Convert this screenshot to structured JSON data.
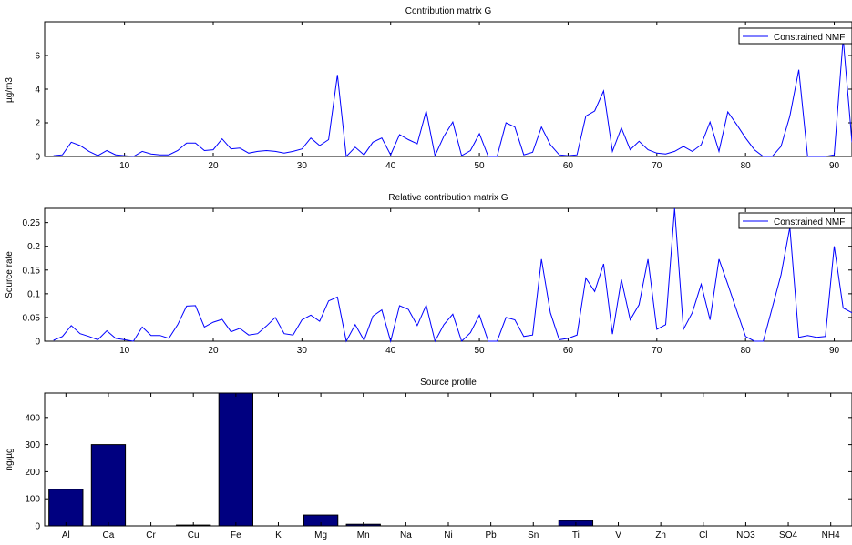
{
  "chart_data": [
    {
      "type": "line",
      "title": "Contribution matrix G",
      "xlabel": "",
      "ylabel": "µg/m3",
      "xlim": [
        1,
        92
      ],
      "ylim": [
        0,
        8
      ],
      "xticks": [
        10,
        20,
        30,
        40,
        50,
        60,
        70,
        80,
        90
      ],
      "yticks": [
        0,
        2,
        4,
        6
      ],
      "legend_position": "top-right",
      "grid": false,
      "color": "#0000ff",
      "series": [
        {
          "name": "Constrained NMF",
          "x": [
            2,
            3,
            4,
            5,
            6,
            7,
            8,
            9,
            10,
            11,
            12,
            13,
            14,
            15,
            16,
            17,
            18,
            19,
            20,
            21,
            22,
            23,
            24,
            25,
            26,
            27,
            28,
            29,
            30,
            31,
            32,
            33,
            34,
            35,
            36,
            37,
            38,
            39,
            40,
            41,
            42,
            43,
            44,
            45,
            46,
            47,
            48,
            49,
            50,
            51,
            52,
            53,
            54,
            55,
            56,
            57,
            58,
            59,
            60,
            61,
            62,
            63,
            64,
            65,
            66,
            67,
            68,
            69,
            70,
            71,
            72,
            73,
            74,
            75,
            76,
            77,
            78,
            79,
            80,
            81,
            82,
            83,
            84,
            85,
            86,
            87,
            88,
            89,
            90,
            91,
            92
          ],
          "values": [
            0.05,
            0.1,
            0.85,
            0.65,
            0.3,
            0.05,
            0.35,
            0.1,
            0.05,
            0.0,
            0.3,
            0.15,
            0.1,
            0.1,
            0.35,
            0.8,
            0.8,
            0.35,
            0.4,
            1.05,
            0.45,
            0.5,
            0.2,
            0.3,
            0.35,
            0.3,
            0.2,
            0.3,
            0.45,
            1.1,
            0.65,
            1.0,
            4.85,
            0.0,
            0.55,
            0.1,
            0.85,
            1.1,
            0.1,
            1.3,
            1.0,
            0.75,
            2.7,
            0.05,
            1.2,
            2.05,
            0.05,
            0.35,
            1.35,
            0.0,
            0.0,
            2.0,
            1.75,
            0.1,
            0.25,
            1.75,
            0.7,
            0.1,
            0.05,
            0.1,
            2.4,
            2.7,
            3.9,
            0.3,
            1.7,
            0.4,
            0.9,
            0.4,
            0.2,
            0.15,
            0.3,
            0.6,
            0.3,
            0.7,
            2.05,
            0.3,
            2.65,
            1.9,
            1.1,
            0.4,
            0.0,
            0.0,
            0.6,
            2.4,
            5.15,
            0.0,
            0.0,
            0.0,
            0.1,
            7.0,
            0.85
          ]
        }
      ]
    },
    {
      "type": "line",
      "title": "Relative contribution matrix G",
      "xlabel": "",
      "ylabel": "Source rate",
      "xlim": [
        1,
        92
      ],
      "ylim": [
        0,
        0.28
      ],
      "xticks": [
        10,
        20,
        30,
        40,
        50,
        60,
        70,
        80,
        90
      ],
      "yticks": [
        0,
        0.05,
        0.1,
        0.15,
        0.2,
        0.25
      ],
      "legend_position": "top-right",
      "grid": false,
      "color": "#0000ff",
      "series": [
        {
          "name": "Constrained NMF",
          "x": [
            2,
            3,
            4,
            5,
            6,
            7,
            8,
            9,
            10,
            11,
            12,
            13,
            14,
            15,
            16,
            17,
            18,
            19,
            20,
            21,
            22,
            23,
            24,
            25,
            26,
            27,
            28,
            29,
            30,
            31,
            32,
            33,
            34,
            35,
            36,
            37,
            38,
            39,
            40,
            41,
            42,
            43,
            44,
            45,
            46,
            47,
            48,
            49,
            50,
            51,
            52,
            53,
            54,
            55,
            56,
            57,
            58,
            59,
            60,
            61,
            62,
            63,
            64,
            65,
            66,
            67,
            68,
            69,
            70,
            71,
            72,
            73,
            74,
            75,
            76,
            77,
            78,
            79,
            80,
            81,
            82,
            83,
            84,
            85,
            86,
            87,
            88,
            89,
            90,
            91,
            92
          ],
          "values": [
            0.002,
            0.01,
            0.033,
            0.016,
            0.01,
            0.003,
            0.022,
            0.006,
            0.003,
            0.0,
            0.03,
            0.012,
            0.012,
            0.006,
            0.035,
            0.074,
            0.075,
            0.03,
            0.04,
            0.046,
            0.02,
            0.027,
            0.013,
            0.016,
            0.032,
            0.05,
            0.016,
            0.013,
            0.045,
            0.055,
            0.042,
            0.085,
            0.093,
            0.0,
            0.035,
            0.002,
            0.053,
            0.066,
            0.0,
            0.075,
            0.067,
            0.033,
            0.076,
            0.0,
            0.035,
            0.057,
            0.0,
            0.018,
            0.055,
            0.0,
            0.0,
            0.05,
            0.045,
            0.01,
            0.013,
            0.173,
            0.06,
            0.003,
            0.006,
            0.013,
            0.133,
            0.105,
            0.163,
            0.015,
            0.13,
            0.045,
            0.077,
            0.173,
            0.025,
            0.035,
            0.28,
            0.025,
            0.06,
            0.12,
            0.045,
            0.173,
            0.12,
            0.065,
            0.01,
            0.0,
            0.0,
            0.07,
            0.14,
            0.24,
            0.008,
            0.012,
            0.008,
            0.01,
            0.2,
            0.07,
            0.06
          ]
        }
      ]
    },
    {
      "type": "bar",
      "title": "Source profile",
      "xlabel": "",
      "ylabel": "ng/µg",
      "ylim": [
        0,
        490
      ],
      "yticks": [
        0,
        100,
        200,
        300,
        400
      ],
      "grid": false,
      "color": "#000080",
      "categories": [
        "Al",
        "Ca",
        "Cr",
        "Cu",
        "Fe",
        "K",
        "Mg",
        "Mn",
        "Na",
        "Ni",
        "Pb",
        "Sn",
        "Ti",
        "V",
        "Zn",
        "Cl",
        "NO3",
        "SO4",
        "NH4"
      ],
      "values": [
        135,
        300,
        0,
        3,
        490,
        0,
        40,
        6,
        0,
        0,
        0,
        0,
        20,
        0,
        0,
        0,
        0,
        0,
        0
      ]
    }
  ]
}
